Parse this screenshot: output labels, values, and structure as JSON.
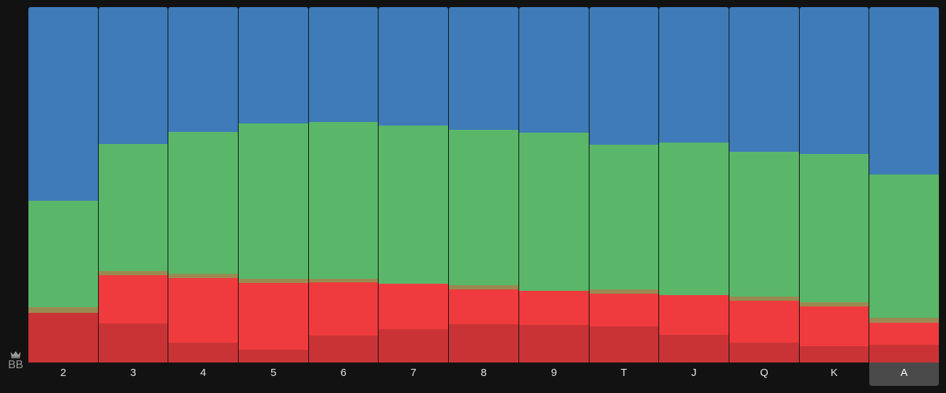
{
  "player": {
    "name": "BB",
    "icon": "crown-icon"
  },
  "selected_rank": "A",
  "colors": {
    "background": "#121212",
    "blue": "#3e7bb8",
    "green": "#5ab769",
    "olive": "#9a8a52",
    "red": "#ef3b3d",
    "darkred": "#c93336",
    "selected_tab": "#4a4a4a"
  },
  "chart_data": {
    "type": "bar",
    "stacked": true,
    "normalized": true,
    "categories": [
      "2",
      "3",
      "4",
      "5",
      "6",
      "7",
      "8",
      "9",
      "T",
      "J",
      "Q",
      "K",
      "A"
    ],
    "ylim": [
      0,
      100
    ],
    "series": [
      {
        "color": "#c93336",
        "values": [
          14.0,
          11.0,
          5.5,
          3.5,
          7.5,
          9.3,
          10.8,
          10.6,
          10.2,
          7.8,
          5.6,
          4.6,
          5.0
        ]
      },
      {
        "color": "#ef3b3d",
        "values": [
          0.0,
          13.5,
          18.3,
          18.9,
          15.0,
          12.8,
          9.8,
          9.6,
          9.2,
          11.2,
          11.8,
          11.2,
          6.2
        ]
      },
      {
        "color": "#9a8a52",
        "values": [
          1.5,
          1.2,
          1.2,
          1.1,
          1.1,
          0.0,
          1.2,
          0.0,
          1.2,
          0.0,
          1.2,
          1.2,
          1.3
        ]
      },
      {
        "color": "#5ab769",
        "values": [
          30.0,
          35.7,
          39.8,
          43.8,
          44.0,
          44.5,
          43.6,
          44.4,
          40.6,
          42.8,
          40.6,
          41.6,
          40.4
        ]
      },
      {
        "color": "#3e7bb8",
        "values": [
          54.5,
          38.6,
          35.2,
          32.7,
          32.4,
          33.4,
          34.6,
          35.4,
          38.8,
          38.2,
          40.8,
          41.4,
          47.1
        ]
      }
    ]
  }
}
